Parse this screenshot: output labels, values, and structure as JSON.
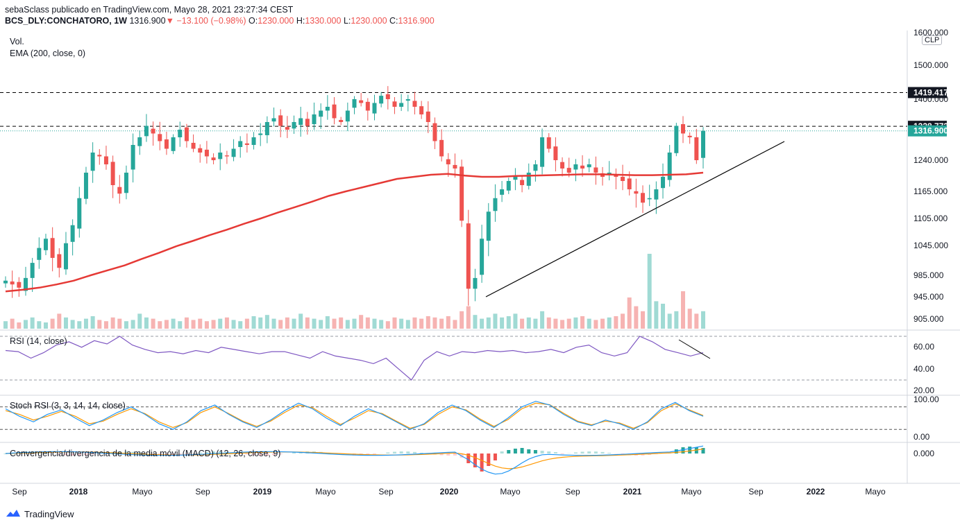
{
  "header": {
    "publisher_line": "sebaSclass publicado en TradingView.com, Mayo 28, 2021 23:27:34 CEST",
    "symbol": "BCS_DLY:CONCHATORO, 1W",
    "last": "1316.900",
    "change_arrow": "▼",
    "change": "−13.100 (−0.98%)",
    "o_label": "O:",
    "o_value": "1230.000",
    "h_label": "H:",
    "h_value": "1330.000",
    "l_label": "L:",
    "l_value": "1230.000",
    "c_label": "C:",
    "c_value": "1316.900"
  },
  "indicators": {
    "vol": "Vol.",
    "ema": "EMA (200, close, 0)",
    "rsi": "RSI (14, close)",
    "stoch": "Stoch RSI (3, 3, 14, 14, close)",
    "macd": "Convergencia/divergencia de la media móvil (MACD) (12, 26, close, 9)"
  },
  "currency": "CLP",
  "footer": {
    "brand": "TradingView"
  },
  "colors": {
    "up": "#26a69a",
    "down": "#ef5350",
    "ema": "#e53935",
    "rsi": "#7e57c2",
    "stoch_k": "#2196f3",
    "stoch_d": "#ff9800"
  },
  "chart_data": {
    "type": "candlestick",
    "title": "BCS_DLY:CONCHATORO, 1W",
    "price_axis_ticks": [
      905,
      945,
      985,
      1045,
      1105,
      1165,
      1240,
      1400,
      1500,
      1600
    ],
    "price_tick_labels": [
      "905.000",
      "945.000",
      "985.000",
      "1045.000",
      "1105.000",
      "1165.000",
      "1240.000",
      "1400.000",
      "1500.000",
      "1600.000"
    ],
    "time_axis_labels": [
      "Sep",
      "2018",
      "Mayo",
      "Sep",
      "2019",
      "Mayo",
      "Sep",
      "2020",
      "Mayo",
      "Sep",
      "2021",
      "Mayo",
      "Sep",
      "2022",
      "Mayo"
    ],
    "horizontal_levels": [
      {
        "value": 1419.417,
        "label": "1419.417"
      },
      {
        "value": 1328.773,
        "label": "1328.773"
      }
    ],
    "last_price": {
      "value": 1316.9,
      "label": "1316.900"
    },
    "closes": [
      975,
      968,
      962,
      980,
      1010,
      1040,
      1060,
      1020,
      1000,
      1050,
      1090,
      1150,
      1210,
      1260,
      1250,
      1230,
      1180,
      1160,
      1210,
      1280,
      1300,
      1330,
      1310,
      1290,
      1270,
      1300,
      1320,
      1290,
      1270,
      1260,
      1250,
      1240,
      1260,
      1250,
      1270,
      1290,
      1280,
      1300,
      1310,
      1340,
      1350,
      1330,
      1320,
      1340,
      1350,
      1330,
      1360,
      1370,
      1380,
      1350,
      1340,
      1370,
      1400,
      1390,
      1370,
      1390,
      1410,
      1400,
      1380,
      1390,
      1400,
      1380,
      1360,
      1340,
      1290,
      1250,
      1230,
      1220,
      1100,
      960,
      980,
      1060,
      1120,
      1150,
      1170,
      1190,
      1200,
      1180,
      1210,
      1230,
      1300,
      1270,
      1240,
      1220,
      1210,
      1230,
      1220,
      1230,
      1210,
      1200,
      1210,
      1200,
      1190,
      1170,
      1160,
      1140,
      1150,
      1170,
      1200,
      1260,
      1330,
      1310,
      1300,
      1240,
      1316.9
    ],
    "ema200": [
      955,
      958,
      962,
      968,
      975,
      985,
      995,
      1005,
      1018,
      1030,
      1043,
      1055,
      1068,
      1080,
      1093,
      1105,
      1118,
      1130,
      1142,
      1155,
      1165,
      1175,
      1185,
      1195,
      1200,
      1205,
      1207,
      1203,
      1200,
      1200,
      1202,
      1203,
      1204,
      1205,
      1206,
      1206,
      1205,
      1204,
      1204,
      1205,
      1206,
      1210
    ],
    "rsi": [
      57,
      56,
      50,
      55,
      62,
      65,
      60,
      66,
      63,
      70,
      62,
      58,
      55,
      56,
      54,
      57,
      55,
      60,
      58,
      56,
      54,
      56,
      56,
      53,
      50,
      56,
      52,
      50,
      48,
      45,
      50,
      40,
      30,
      48,
      56,
      52,
      56,
      55,
      57,
      56,
      57,
      55,
      56,
      58,
      55,
      60,
      62,
      55,
      52,
      55,
      70,
      65,
      58,
      55,
      52,
      55
    ],
    "rsi_levels": [
      70,
      30
    ],
    "rsi_axis_ticks": [
      "60.00",
      "40.00",
      "20.00"
    ],
    "stoch_k": [
      75,
      55,
      40,
      60,
      72,
      50,
      30,
      45,
      65,
      80,
      60,
      35,
      20,
      40,
      70,
      85,
      60,
      40,
      25,
      45,
      70,
      90,
      75,
      50,
      30,
      55,
      75,
      60,
      40,
      20,
      35,
      65,
      85,
      70,
      45,
      25,
      50,
      80,
      95,
      85,
      60,
      40,
      30,
      45,
      35,
      20,
      40,
      75,
      92,
      70,
      55
    ],
    "stoch_d": [
      70,
      60,
      45,
      55,
      68,
      55,
      35,
      42,
      60,
      75,
      62,
      40,
      25,
      38,
      65,
      80,
      62,
      42,
      28,
      42,
      65,
      85,
      78,
      55,
      33,
      50,
      70,
      62,
      42,
      23,
      33,
      60,
      80,
      72,
      48,
      28,
      46,
      75,
      90,
      86,
      63,
      42,
      32,
      42,
      37,
      23,
      38,
      70,
      88,
      72,
      57
    ],
    "stoch_levels": [
      80,
      20
    ],
    "stoch_axis_ticks": [
      "100.00",
      "0.00"
    ],
    "macd_axis_ticks": [
      "0.000"
    ],
    "grid": false
  }
}
